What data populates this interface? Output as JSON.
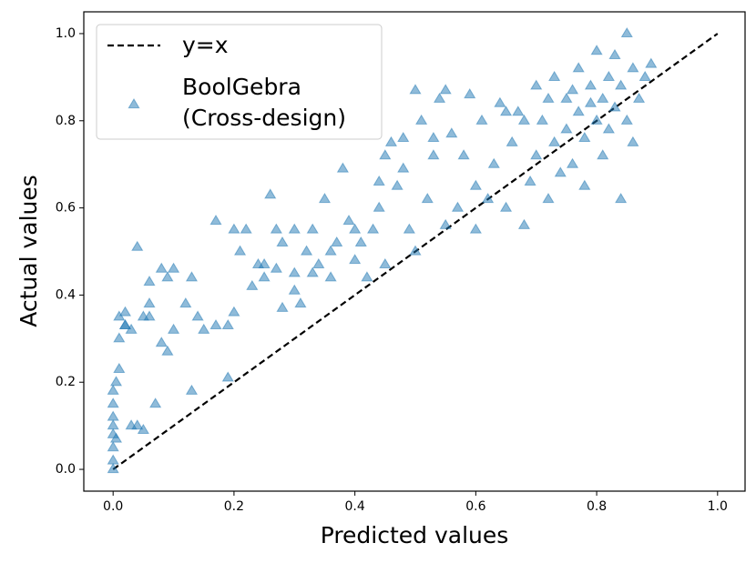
{
  "chart_data": {
    "type": "scatter",
    "xlabel": "Predicted values",
    "ylabel": "Actual values",
    "xlim": [
      -0.0485,
      1.0455
    ],
    "ylim": [
      -0.05,
      1.05
    ],
    "xticks": [
      {
        "value": 0,
        "label": "0.0"
      },
      0.2,
      0.4,
      0.6,
      0.8,
      {
        "value": 1,
        "label": "1.0"
      }
    ],
    "yticks": [
      {
        "value": 0,
        "label": "0.0"
      },
      0.2,
      0.4,
      0.6,
      0.8,
      {
        "value": 1,
        "label": "1.0"
      }
    ],
    "legend": "upper left",
    "series": [
      {
        "name": "y=x",
        "type": "line",
        "color": "#000000",
        "x": [
          0,
          1
        ],
        "values": [
          0,
          1
        ]
      },
      {
        "name": "BoolGebra\n(Cross-design)",
        "type": "scatter",
        "color": "#1f77b4",
        "x": [
          0,
          0,
          0,
          0,
          0,
          0,
          0,
          0,
          0.005,
          0.005,
          0.01,
          0.01,
          0.01,
          0.02,
          0.02,
          0.03,
          0.03,
          0.04,
          0.04,
          0.05,
          0.05,
          0.06,
          0.06,
          0.07,
          0.08,
          0.08,
          0.09,
          0.09,
          0.1,
          0.1,
          0.13,
          0.13,
          0.14,
          0.17,
          0.17,
          0.19,
          0.19,
          0.2,
          0.21,
          0.22,
          0.23,
          0.24,
          0.25,
          0.26,
          0.27,
          0.28,
          0.28,
          0.3,
          0.3,
          0.31,
          0.32,
          0.33,
          0.34,
          0.35,
          0.36,
          0.37,
          0.38,
          0.39,
          0.4,
          0.41,
          0.42,
          0.43,
          0.44,
          0.45,
          0.45,
          0.46,
          0.47,
          0.48,
          0.49,
          0.5,
          0.5,
          0.51,
          0.52,
          0.53,
          0.54,
          0.55,
          0.56,
          0.57,
          0.58,
          0.59,
          0.6,
          0.6,
          0.61,
          0.62,
          0.63,
          0.64,
          0.65,
          0.66,
          0.67,
          0.68,
          0.69,
          0.7,
          0.7,
          0.71,
          0.72,
          0.73,
          0.73,
          0.74,
          0.75,
          0.75,
          0.76,
          0.77,
          0.77,
          0.78,
          0.78,
          0.79,
          0.8,
          0.8,
          0.81,
          0.81,
          0.82,
          0.82,
          0.83,
          0.83,
          0.84,
          0.84,
          0.85,
          0.85,
          0.86,
          0.87,
          0.88,
          0.89,
          0.86,
          0.79,
          0.76,
          0.72,
          0.68,
          0.65,
          0.55,
          0.53,
          0.48,
          0.44,
          0.4,
          0.36,
          0.33,
          0.3,
          0.27,
          0.25,
          0.2,
          0.15,
          0.12,
          0.06,
          0.02
        ],
        "values": [
          0,
          0.02,
          0.05,
          0.08,
          0.1,
          0.12,
          0.15,
          0.18,
          0.07,
          0.2,
          0.23,
          0.3,
          0.35,
          0.36,
          0.33,
          0.32,
          0.1,
          0.1,
          0.51,
          0.35,
          0.09,
          0.43,
          0.38,
          0.15,
          0.46,
          0.29,
          0.44,
          0.27,
          0.32,
          0.46,
          0.18,
          0.44,
          0.35,
          0.57,
          0.33,
          0.33,
          0.21,
          0.36,
          0.5,
          0.55,
          0.42,
          0.47,
          0.44,
          0.63,
          0.46,
          0.52,
          0.37,
          0.55,
          0.45,
          0.38,
          0.5,
          0.55,
          0.47,
          0.62,
          0.44,
          0.52,
          0.69,
          0.57,
          0.48,
          0.52,
          0.44,
          0.55,
          0.6,
          0.72,
          0.47,
          0.75,
          0.65,
          0.69,
          0.55,
          0.87,
          0.5,
          0.8,
          0.62,
          0.72,
          0.85,
          0.56,
          0.77,
          0.6,
          0.72,
          0.86,
          0.65,
          0.55,
          0.8,
          0.62,
          0.7,
          0.84,
          0.6,
          0.75,
          0.82,
          0.56,
          0.66,
          0.88,
          0.72,
          0.8,
          0.62,
          0.9,
          0.75,
          0.68,
          0.85,
          0.78,
          0.7,
          0.92,
          0.82,
          0.76,
          0.65,
          0.88,
          0.8,
          0.96,
          0.85,
          0.72,
          0.9,
          0.78,
          0.95,
          0.83,
          0.88,
          0.62,
          1.0,
          0.8,
          0.92,
          0.85,
          0.9,
          0.93,
          0.75,
          0.84,
          0.87,
          0.85,
          0.8,
          0.82,
          0.87,
          0.76,
          0.76,
          0.66,
          0.55,
          0.5,
          0.45,
          0.41,
          0.55,
          0.47,
          0.55,
          0.32,
          0.38,
          0.35,
          0.33
        ]
      }
    ]
  }
}
